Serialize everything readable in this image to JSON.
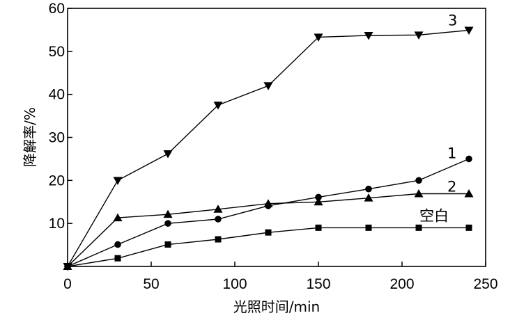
{
  "chart_data": {
    "type": "line",
    "xlabel": "光照时间/min",
    "ylabel": "降解率/%",
    "xlim": [
      0,
      250
    ],
    "ylim": [
      0,
      60
    ],
    "xticks": [
      0,
      50,
      100,
      150,
      200,
      250
    ],
    "yticks": [
      10,
      20,
      30,
      40,
      50,
      60
    ],
    "grid": false,
    "series": [
      {
        "name": "3",
        "marker": "triangle-down",
        "x": [
          0,
          30,
          60,
          90,
          120,
          150,
          180,
          210,
          240
        ],
        "y": [
          0,
          20,
          26.2,
          37.5,
          42,
          53.3,
          53.7,
          53.8,
          54.9
        ]
      },
      {
        "name": "1",
        "marker": "circle",
        "x": [
          0,
          30,
          60,
          90,
          120,
          150,
          180,
          210,
          240
        ],
        "y": [
          0,
          5.1,
          10,
          11,
          14.1,
          16.1,
          18,
          20,
          25
        ]
      },
      {
        "name": "2",
        "marker": "triangle-up",
        "x": [
          0,
          30,
          60,
          90,
          120,
          150,
          180,
          210,
          240
        ],
        "y": [
          0,
          11.3,
          12.1,
          13.3,
          14.6,
          15,
          15.9,
          16.9,
          16.9
        ]
      },
      {
        "name": "空白",
        "marker": "square",
        "x": [
          0,
          30,
          60,
          90,
          120,
          150,
          180,
          210,
          240
        ],
        "y": [
          0,
          1.9,
          5.1,
          6.3,
          7.9,
          9,
          9,
          9,
          9
        ]
      }
    ]
  }
}
